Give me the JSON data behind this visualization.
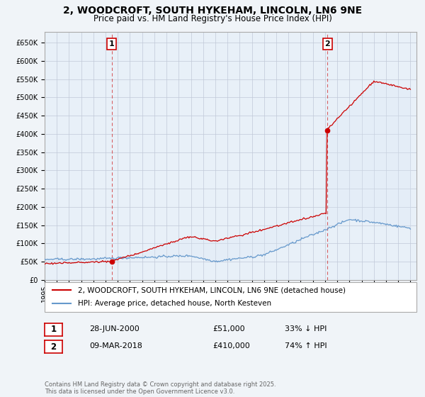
{
  "title": "2, WOODCROFT, SOUTH HYKEHAM, LINCOLN, LN6 9NE",
  "subtitle": "Price paid vs. HM Land Registry's House Price Index (HPI)",
  "background_color": "#f0f4f8",
  "plot_bg_color": "#e8f0f8",
  "grid_color": "#c0c8d8",
  "ylim": [
    0,
    680000
  ],
  "yticks": [
    0,
    50000,
    100000,
    150000,
    200000,
    250000,
    300000,
    350000,
    400000,
    450000,
    500000,
    550000,
    600000,
    650000
  ],
  "xlim_start": 1995.0,
  "xlim_end": 2025.5,
  "xticks": [
    1995,
    1996,
    1997,
    1998,
    1999,
    2000,
    2001,
    2002,
    2003,
    2004,
    2005,
    2006,
    2007,
    2008,
    2009,
    2010,
    2011,
    2012,
    2013,
    2014,
    2015,
    2016,
    2017,
    2018,
    2019,
    2020,
    2021,
    2022,
    2023,
    2024,
    2025
  ],
  "red_line_color": "#cc0000",
  "blue_line_color": "#6699cc",
  "fill_color": "#dce8f5",
  "transaction1_x": 2000.49,
  "transaction1_y": 51000,
  "transaction2_x": 2018.19,
  "transaction2_y": 410000,
  "vline1_x": 2000.49,
  "vline2_x": 2018.19,
  "vline_color": "#cc0000",
  "label1_text": "1",
  "label2_text": "2",
  "legend_red_label": "2, WOODCROFT, SOUTH HYKEHAM, LINCOLN, LN6 9NE (detached house)",
  "legend_blue_label": "HPI: Average price, detached house, North Kesteven",
  "table_row1": [
    "1",
    "28-JUN-2000",
    "£51,000",
    "33% ↓ HPI"
  ],
  "table_row2": [
    "2",
    "09-MAR-2018",
    "£410,000",
    "74% ↑ HPI"
  ],
  "footer": "Contains HM Land Registry data © Crown copyright and database right 2025.\nThis data is licensed under the Open Government Licence v3.0.",
  "title_fontsize": 10,
  "subtitle_fontsize": 8.5,
  "tick_fontsize": 7,
  "legend_fontsize": 7.5,
  "table_fontsize": 8,
  "footer_fontsize": 6
}
